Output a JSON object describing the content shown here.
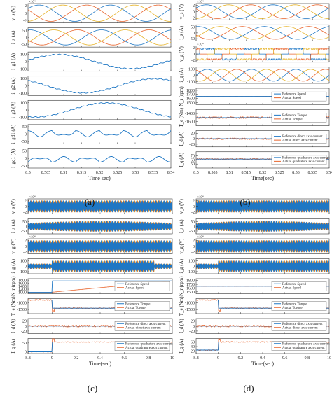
{
  "figure": {
    "captions": [
      "(a)",
      "(b)",
      "(c)",
      "(d)"
    ],
    "colors": {
      "blue": "#1f77c4",
      "orange": "#e8642c",
      "yellow": "#e6b32a",
      "frame": "#333333"
    }
  },
  "chart_data": [
    {
      "id": "a",
      "type": "line",
      "caption": "(a)",
      "xlabel": "Time sec)",
      "xlim": [
        8.5,
        8.54
      ],
      "xticks": [
        "8.5",
        "8.505",
        "8.51",
        "8.515",
        "8.52",
        "8.525",
        "8.53",
        "8.535",
        "8.54"
      ],
      "panels": [
        {
          "ylabel": "v_s (V)",
          "exponent": "×10⁴",
          "yticks": [
            "2",
            "0",
            "-2"
          ],
          "ylim": [
            -2.6,
            2.6
          ],
          "kind": "sine3",
          "amp": 2.2,
          "freq": 50,
          "phase": 0.6
        },
        {
          "ylabel": "i_s (A)",
          "yticks": [
            "50",
            "0",
            "-50"
          ],
          "ylim": [
            -70,
            70
          ],
          "kind": "sine3",
          "amp": 55,
          "freq": 50,
          "phase": 1.4
        },
        {
          "ylabel": "i_g1 (A)",
          "yticks": [
            "100",
            "0",
            "-100"
          ],
          "ylim": [
            -130,
            130
          ],
          "kind": "sine",
          "amp": 95,
          "freq": 25,
          "phase": 0.2,
          "ripple": 6
        },
        {
          "ylabel": "i_g2 (A)",
          "yticks": [
            "100",
            "0",
            "-100"
          ],
          "ylim": [
            -130,
            130
          ],
          "kind": "sine",
          "amp": 95,
          "freq": 25,
          "phase": 2.3,
          "ripple": 6
        },
        {
          "ylabel": "i_g3 (A)",
          "yticks": [
            "100",
            "0",
            "-100"
          ],
          "ylim": [
            -130,
            130
          ],
          "kind": "sine",
          "amp": 95,
          "freq": 25,
          "phase": 4.4,
          "ripple": 6
        },
        {
          "ylabel": "i_gd1 (A)",
          "yticks": [
            "50",
            "0",
            "-50"
          ],
          "ylim": [
            -65,
            65
          ],
          "kind": "dq",
          "offset": 25,
          "amp": 35,
          "freq": 75
        },
        {
          "ylabel": "i_gq1 (A)",
          "yticks": [
            "50",
            "0",
            "-50"
          ],
          "ylim": [
            -65,
            65
          ],
          "kind": "dq",
          "offset": -25,
          "amp": 30,
          "freq": 75
        }
      ]
    },
    {
      "id": "b",
      "type": "line",
      "caption": "(b)",
      "xlabel": "Time(sec)",
      "xlim": [
        8.5,
        8.54
      ],
      "xticks": [
        "8.5",
        "8.505",
        "8.51",
        "8.515",
        "8.52",
        "8.525",
        "8.53",
        "8.535",
        "8.54"
      ],
      "panels": [
        {
          "ylabel": "v_s (V)",
          "exponent": "×10⁴",
          "yticks": [
            "2",
            "0",
            "-2"
          ],
          "ylim": [
            -2.6,
            2.6
          ],
          "kind": "sine3",
          "amp": 2.2,
          "freq": 50,
          "phase": 0.6
        },
        {
          "ylabel": "i_s (A)",
          "yticks": [
            "50",
            "0",
            "-50"
          ],
          "ylim": [
            -70,
            70
          ],
          "kind": "sine3",
          "amp": 55,
          "freq": 50,
          "phase": 1.4
        },
        {
          "ylabel": "v_g (V)",
          "exponent": "×10⁴",
          "yticks": [
            "2",
            "0",
            "-2"
          ],
          "ylim": [
            -2.6,
            2.6
          ],
          "kind": "pwm3",
          "amp": 1.5,
          "freq": 75
        },
        {
          "ylabel": "i_g (A)",
          "yticks": [
            "100",
            "0",
            "-100"
          ],
          "ylim": [
            -130,
            130
          ],
          "kind": "sine3",
          "amp": 95,
          "freq": 75,
          "phase": 0
        },
        {
          "ylabel": "N_r (rpm)",
          "yticks": [
            "1800",
            "1700",
            "1600",
            "1500"
          ],
          "ylim": [
            1450,
            1850
          ],
          "kind": "steady",
          "value": 1650,
          "legend": [
            "Reference Speed",
            "Actual Speed"
          ]
        },
        {
          "ylabel": "T_e (Nm)",
          "yticks": [
            "-1400",
            "-1600"
          ],
          "ylim": [
            -1700,
            -1300
          ],
          "kind": "noisy",
          "value": -1500,
          "noise": 25,
          "legend": [
            "Reference Torque",
            "Actual Torque"
          ]
        },
        {
          "ylabel": "I_d (A)",
          "yticks": [
            "20",
            "0",
            "-20"
          ],
          "ylim": [
            -30,
            30
          ],
          "kind": "noisy",
          "value": 0,
          "noise": 3,
          "legend": [
            "Reference direct axis current",
            "Actual direct axis current"
          ]
        },
        {
          "ylabel": "I_q (A)",
          "yticks": [
            "70",
            "60",
            "50"
          ],
          "ylim": [
            40,
            80
          ],
          "kind": "noisy",
          "value": 62,
          "noise": 2,
          "legend": [
            "Reference quadrature axis current",
            "Actual quadrature axis current"
          ]
        }
      ]
    },
    {
      "id": "c",
      "type": "line",
      "caption": "(c)",
      "xlabel": "Time(sec)",
      "xlim": [
        8.8,
        10
      ],
      "xticks": [
        "8.8",
        "9",
        "9.2",
        "9.4",
        "9.6",
        "9.8",
        "10"
      ],
      "panels": [
        {
          "ylabel": "v_s (V)",
          "exponent": "×10⁴",
          "yticks": [
            "2",
            "0",
            "-2"
          ],
          "ylim": [
            -2.6,
            2.6
          ],
          "kind": "dense",
          "amp": 2.0
        },
        {
          "ylabel": "i_s (A)",
          "yticks": [
            "50",
            "0",
            "-50"
          ],
          "ylim": [
            -80,
            80
          ],
          "kind": "dense_bulge",
          "amp": 35,
          "bulge": 20
        },
        {
          "ylabel": "v_g (V)",
          "exponent": "×10⁴",
          "yticks": [
            "2",
            "0",
            "-2"
          ],
          "ylim": [
            -2.6,
            2.6
          ],
          "kind": "dense",
          "amp": 2.0
        },
        {
          "ylabel": "i_g (A)",
          "yticks": [
            "100",
            "0",
            "-100"
          ],
          "ylim": [
            -140,
            140
          ],
          "kind": "dense_step",
          "amp_lo": 45,
          "amp_hi": 100,
          "t_on": 9.0,
          "t_off": 9.85
        },
        {
          "ylabel": "N_r (rpm)",
          "yticks": [
            "1800",
            "1600",
            "1400",
            "1200",
            "1000"
          ],
          "ylim": [
            900,
            1900
          ],
          "kind": "ramp",
          "t_on": 9.0,
          "v_start": 1000,
          "v_end": 1750,
          "legend": [
            "Reference Speed",
            "Actual Speed"
          ]
        },
        {
          "ylabel": "T_e (Nm)",
          "yticks": [
            "-1000",
            "-1500"
          ],
          "ylim": [
            -1800,
            -700
          ],
          "kind": "step",
          "t_on": 9.0,
          "v0": -800,
          "v1": -1400,
          "noise": 40,
          "legend": [
            "Reference Torque",
            "Actual Torque"
          ]
        },
        {
          "ylabel": "I_d (A)",
          "yticks": [
            "20",
            "0",
            "-20"
          ],
          "ylim": [
            -30,
            30
          ],
          "kind": "noisy",
          "value": 0,
          "noise": 4,
          "legend": [
            "Reference direct axis current",
            "Actual direct axis current"
          ]
        },
        {
          "ylabel": "I_q (A)",
          "yticks": [
            "50",
            "0"
          ],
          "ylim": [
            -10,
            75
          ],
          "kind": "step",
          "t_on": 9.0,
          "v0": 0,
          "v1": 55,
          "noise": 2,
          "legend": [
            "Reference quadrature axis current",
            "Actual quadrature axis current"
          ]
        }
      ]
    },
    {
      "id": "d",
      "type": "line",
      "caption": "(d)",
      "xlabel": "Time(sec)",
      "xlim": [
        8.8,
        10
      ],
      "xticks": [
        "8.8",
        "9",
        "9.2",
        "9.4",
        "9.6",
        "9.8",
        "10"
      ],
      "panels": [
        {
          "ylabel": "v_s (V)",
          "exponent": "×10⁴",
          "yticks": [
            "2",
            "0",
            "-2"
          ],
          "ylim": [
            -2.6,
            2.6
          ],
          "kind": "dense",
          "amp": 2.0
        },
        {
          "ylabel": "i_s (A)",
          "yticks": [
            "50",
            "0",
            "-50"
          ],
          "ylim": [
            -80,
            80
          ],
          "kind": "dense_bulge",
          "amp": 35,
          "bulge": 20
        },
        {
          "ylabel": "v_g (V)",
          "exponent": "×10⁴",
          "yticks": [
            "2",
            "0",
            "-2"
          ],
          "ylim": [
            -2.6,
            2.6
          ],
          "kind": "dense",
          "amp": 2.0
        },
        {
          "ylabel": "i_g (A)",
          "yticks": [
            "100",
            "0",
            "-100"
          ],
          "ylim": [
            -140,
            140
          ],
          "kind": "dense_step",
          "amp_lo": 45,
          "amp_hi": 100,
          "t_on": 9.0,
          "t_off": 10.5
        },
        {
          "ylabel": "N_r (rpm)",
          "yticks": [
            "1800",
            "1700",
            "1600",
            "1500"
          ],
          "ylim": [
            1450,
            1850
          ],
          "kind": "steady",
          "value": 1650,
          "legend": [
            "Reference Speed",
            "Actual Speed"
          ]
        },
        {
          "ylabel": "T_e (Nm)",
          "yticks": [
            "-1000",
            "-1500"
          ],
          "ylim": [
            -1800,
            -700
          ],
          "kind": "step",
          "t_on": 9.0,
          "v0": -800,
          "v1": -1400,
          "noise": 40,
          "legend": [
            "Reference Torque",
            "Actual Torque"
          ]
        },
        {
          "ylabel": "I_d (A)",
          "yticks": [
            "20",
            "0",
            "-20"
          ],
          "ylim": [
            -30,
            30
          ],
          "kind": "noisy",
          "value": 0,
          "noise": 4,
          "legend": [
            "Reference direct axis current",
            "Actual direct axis current"
          ]
        },
        {
          "ylabel": "I_q (A)",
          "yticks": [
            "60",
            "40",
            "20"
          ],
          "ylim": [
            10,
            75
          ],
          "kind": "step",
          "t_on": 9.0,
          "v0": 25,
          "v1": 60,
          "noise": 2,
          "legend": [
            "Reference quadrature axis current",
            "Actual quadrature axis current"
          ]
        }
      ]
    }
  ]
}
